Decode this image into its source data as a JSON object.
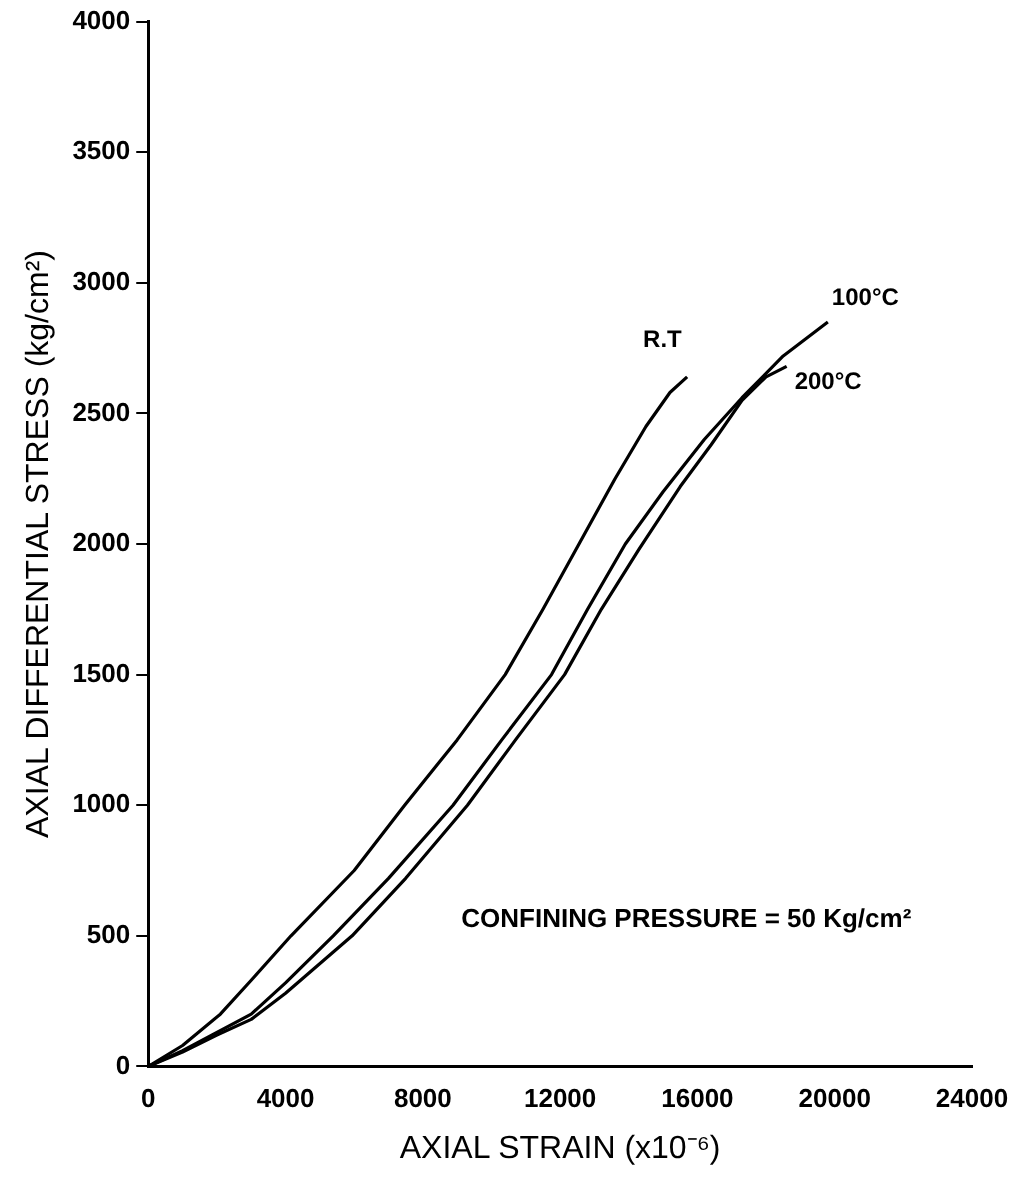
{
  "chart_data": {
    "type": "line",
    "xlabel": "AXIAL STRAIN (x10⁻⁶)",
    "ylabel": "AXIAL DIFFERENTIAL STRESS (kg/cm²)",
    "xlim": [
      0,
      24000
    ],
    "xticks": [
      0,
      4000,
      8000,
      12000,
      16000,
      20000,
      24000
    ],
    "ylim": [
      0,
      4000
    ],
    "yticks": [
      0,
      500,
      1000,
      1500,
      2000,
      2500,
      3000,
      3500,
      4000
    ],
    "grid": false,
    "legend": false,
    "marker": "none",
    "line_style": "solid",
    "annotations": [
      "CONFINING PRESSURE = 50 Kg/cm²"
    ],
    "series": [
      {
        "name": "R.T",
        "color": "#000000",
        "x": [
          0,
          1000,
          2100,
          3000,
          4160,
          6000,
          7470,
          9000,
          10400,
          11500,
          12550,
          13600,
          14500,
          15200,
          15700
        ],
        "values": [
          0,
          80,
          200,
          330,
          500,
          750,
          1000,
          1250,
          1500,
          1750,
          2000,
          2250,
          2450,
          2580,
          2640
        ]
      },
      {
        "name": "100°C",
        "color": "#000000",
        "x": [
          0,
          1000,
          2000,
          3000,
          4000,
          5390,
          7000,
          8880,
          10300,
          11750,
          12800,
          13900,
          15000,
          16200,
          17300,
          18500,
          19800
        ],
        "values": [
          0,
          60,
          130,
          200,
          320,
          500,
          720,
          1000,
          1250,
          1500,
          1750,
          2000,
          2200,
          2400,
          2560,
          2720,
          2850
        ]
      },
      {
        "name": "200°C",
        "color": "#000000",
        "x": [
          0,
          1000,
          2000,
          3000,
          4000,
          5940,
          7500,
          9300,
          10700,
          12130,
          13200,
          14300,
          15500,
          16400,
          17300,
          18000,
          18600
        ],
        "values": [
          0,
          55,
          120,
          180,
          280,
          500,
          720,
          1000,
          1250,
          1500,
          1750,
          1980,
          2220,
          2380,
          2550,
          2640,
          2680
        ]
      }
    ]
  }
}
